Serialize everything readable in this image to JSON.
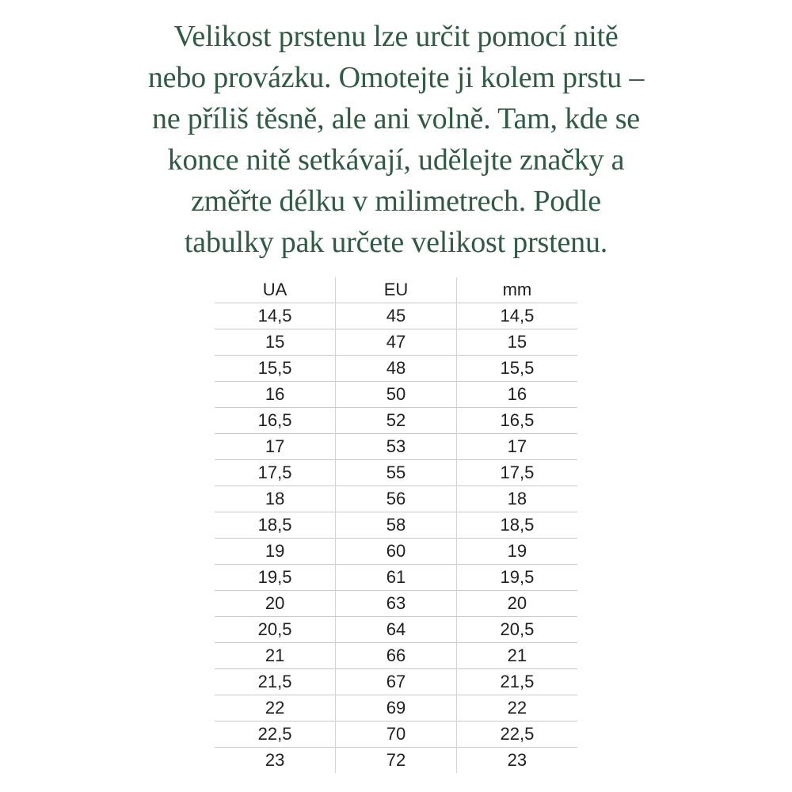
{
  "intro": {
    "lines": [
      "Velikost prstenu lze určit pomocí nitě",
      "nebo provázku. Omotejte ji kolem prstu –",
      "ne příliš těsně, ale ani volně. Tam, kde se",
      "konce nitě setkávají, udělejte značky a",
      "změřte délku v milimetrech. Podle",
      "tabulky pak určete velikost prstenu."
    ]
  },
  "table": {
    "headers": [
      "UA",
      "EU",
      "mm"
    ],
    "rows": [
      [
        "14,5",
        "45",
        "14,5"
      ],
      [
        "15",
        "47",
        "15"
      ],
      [
        "15,5",
        "48",
        "15,5"
      ],
      [
        "16",
        "50",
        "16"
      ],
      [
        "16,5",
        "52",
        "16,5"
      ],
      [
        "17",
        "53",
        "17"
      ],
      [
        "17,5",
        "55",
        "17,5"
      ],
      [
        "18",
        "56",
        "18"
      ],
      [
        "18,5",
        "58",
        "18,5"
      ],
      [
        "19",
        "60",
        "19"
      ],
      [
        "19,5",
        "61",
        "19,5"
      ],
      [
        "20",
        "63",
        "20"
      ],
      [
        "20,5",
        "64",
        "20,5"
      ],
      [
        "21",
        "66",
        "21"
      ],
      [
        "21,5",
        "67",
        "21,5"
      ],
      [
        "22",
        "69",
        "22"
      ],
      [
        "22,5",
        "70",
        "22,5"
      ],
      [
        "23",
        "72",
        "23"
      ]
    ]
  },
  "colors": {
    "intro_text": "#2e5b44",
    "table_text": "#1f1f1f",
    "grid_line_horizontal": "#c9c9c9",
    "grid_line_vertical": "#d4d4d4"
  }
}
